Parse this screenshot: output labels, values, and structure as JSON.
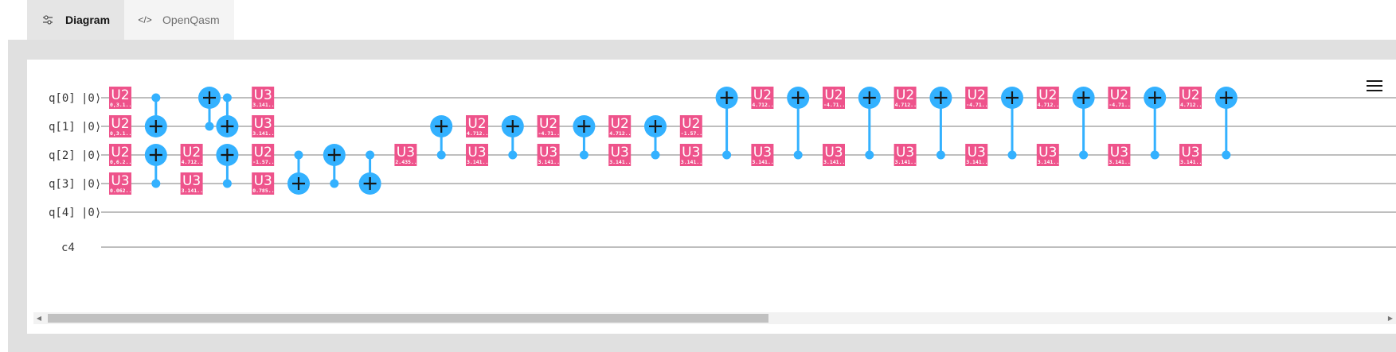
{
  "tabs": [
    {
      "label": "Diagram",
      "icon": "settings-adjust-icon",
      "active": true
    },
    {
      "label": "OpenQasm",
      "icon": "code-icon",
      "active": false
    }
  ],
  "menu": {
    "icon": "hamburger-menu-icon"
  },
  "colors": {
    "gate": "#ee538b",
    "cnot": "#33b1ff",
    "wire": "#a8a8a8"
  },
  "circuit": {
    "qubits": [
      {
        "label": "q[0]",
        "init": "|0⟩"
      },
      {
        "label": "q[1]",
        "init": "|0⟩"
      },
      {
        "label": "q[2]",
        "init": "|0⟩"
      },
      {
        "label": "q[3]",
        "init": "|0⟩"
      },
      {
        "label": "q[4]",
        "init": "|0⟩"
      }
    ],
    "classical": {
      "label": "c4"
    },
    "gates": [
      {
        "col": 0,
        "q": 0,
        "name": "U2",
        "param": "0,3.1..."
      },
      {
        "col": 0,
        "q": 1,
        "name": "U2",
        "param": "0,3.1..."
      },
      {
        "col": 0,
        "q": 2,
        "name": "U2",
        "param": "0,6.2..."
      },
      {
        "col": 0,
        "q": 3,
        "name": "U3",
        "param": "0.062..."
      },
      {
        "col": 2,
        "q": 2,
        "name": "U2",
        "param": "4.712..."
      },
      {
        "col": 2,
        "q": 3,
        "name": "U3",
        "param": "3.141..."
      },
      {
        "col": 4,
        "q": 0,
        "name": "U3",
        "param": "3.141..."
      },
      {
        "col": 4,
        "q": 1,
        "name": "U3",
        "param": "3.141..."
      },
      {
        "col": 4,
        "q": 2,
        "name": "U2",
        "param": "-1.57..."
      },
      {
        "col": 4,
        "q": 3,
        "name": "U3",
        "param": "0.785..."
      },
      {
        "col": 8,
        "q": 2,
        "name": "U3",
        "param": "2.435..."
      },
      {
        "col": 10,
        "q": 1,
        "name": "U2",
        "param": "4.712..."
      },
      {
        "col": 10,
        "q": 2,
        "name": "U3",
        "param": "3.141..."
      },
      {
        "col": 12,
        "q": 1,
        "name": "U2",
        "param": "-4.71..."
      },
      {
        "col": 12,
        "q": 2,
        "name": "U3",
        "param": "3.141..."
      },
      {
        "col": 14,
        "q": 1,
        "name": "U2",
        "param": "4.712..."
      },
      {
        "col": 14,
        "q": 2,
        "name": "U3",
        "param": "3.141..."
      },
      {
        "col": 16,
        "q": 1,
        "name": "U2",
        "param": "-1.57..."
      },
      {
        "col": 16,
        "q": 2,
        "name": "U3",
        "param": "3.141..."
      },
      {
        "col": 18,
        "q": 0,
        "name": "U2",
        "param": "4.712..."
      },
      {
        "col": 18,
        "q": 2,
        "name": "U3",
        "param": "3.141..."
      },
      {
        "col": 20,
        "q": 0,
        "name": "U2",
        "param": "-4.71..."
      },
      {
        "col": 20,
        "q": 2,
        "name": "U3",
        "param": "3.141..."
      },
      {
        "col": 22,
        "q": 0,
        "name": "U2",
        "param": "4.712..."
      },
      {
        "col": 22,
        "q": 2,
        "name": "U3",
        "param": "3.141..."
      },
      {
        "col": 24,
        "q": 0,
        "name": "U2",
        "param": "-4.71..."
      },
      {
        "col": 24,
        "q": 2,
        "name": "U3",
        "param": "3.141..."
      },
      {
        "col": 26,
        "q": 0,
        "name": "U2",
        "param": "4.712..."
      },
      {
        "col": 26,
        "q": 2,
        "name": "U3",
        "param": "3.141..."
      },
      {
        "col": 28,
        "q": 0,
        "name": "U2",
        "param": "-4.71..."
      },
      {
        "col": 28,
        "q": 2,
        "name": "U3",
        "param": "3.141..."
      },
      {
        "col": 30,
        "q": 0,
        "name": "U2",
        "param": "4.712..."
      },
      {
        "col": 30,
        "q": 2,
        "name": "U3",
        "param": "3.141..."
      }
    ],
    "cnots": [
      {
        "col": 1,
        "control": 0,
        "target": 1
      },
      {
        "col": 1,
        "control": 3,
        "target": 2
      },
      {
        "col": 2.5,
        "control": 1,
        "target": 0
      },
      {
        "col": 3,
        "control": 0,
        "target": 1
      },
      {
        "col": 3,
        "control": 3,
        "target": 2
      },
      {
        "col": 5,
        "control": 2,
        "target": 3
      },
      {
        "col": 6,
        "control": 3,
        "target": 2
      },
      {
        "col": 7,
        "control": 2,
        "target": 3
      },
      {
        "col": 9,
        "control": 2,
        "target": 1
      },
      {
        "col": 11,
        "control": 2,
        "target": 1
      },
      {
        "col": 13,
        "control": 2,
        "target": 1
      },
      {
        "col": 15,
        "control": 2,
        "target": 1
      },
      {
        "col": 17,
        "control": 2,
        "target": 0
      },
      {
        "col": 19,
        "control": 2,
        "target": 0
      },
      {
        "col": 21,
        "control": 2,
        "target": 0
      },
      {
        "col": 23,
        "control": 2,
        "target": 0
      },
      {
        "col": 25,
        "control": 2,
        "target": 0
      },
      {
        "col": 27,
        "control": 2,
        "target": 0
      },
      {
        "col": 29,
        "control": 2,
        "target": 0
      },
      {
        "col": 31,
        "control": 2,
        "target": 0
      }
    ]
  },
  "scrollbar": {
    "position": 0.54,
    "left_arrow": "◀",
    "right_arrow": "▶"
  }
}
